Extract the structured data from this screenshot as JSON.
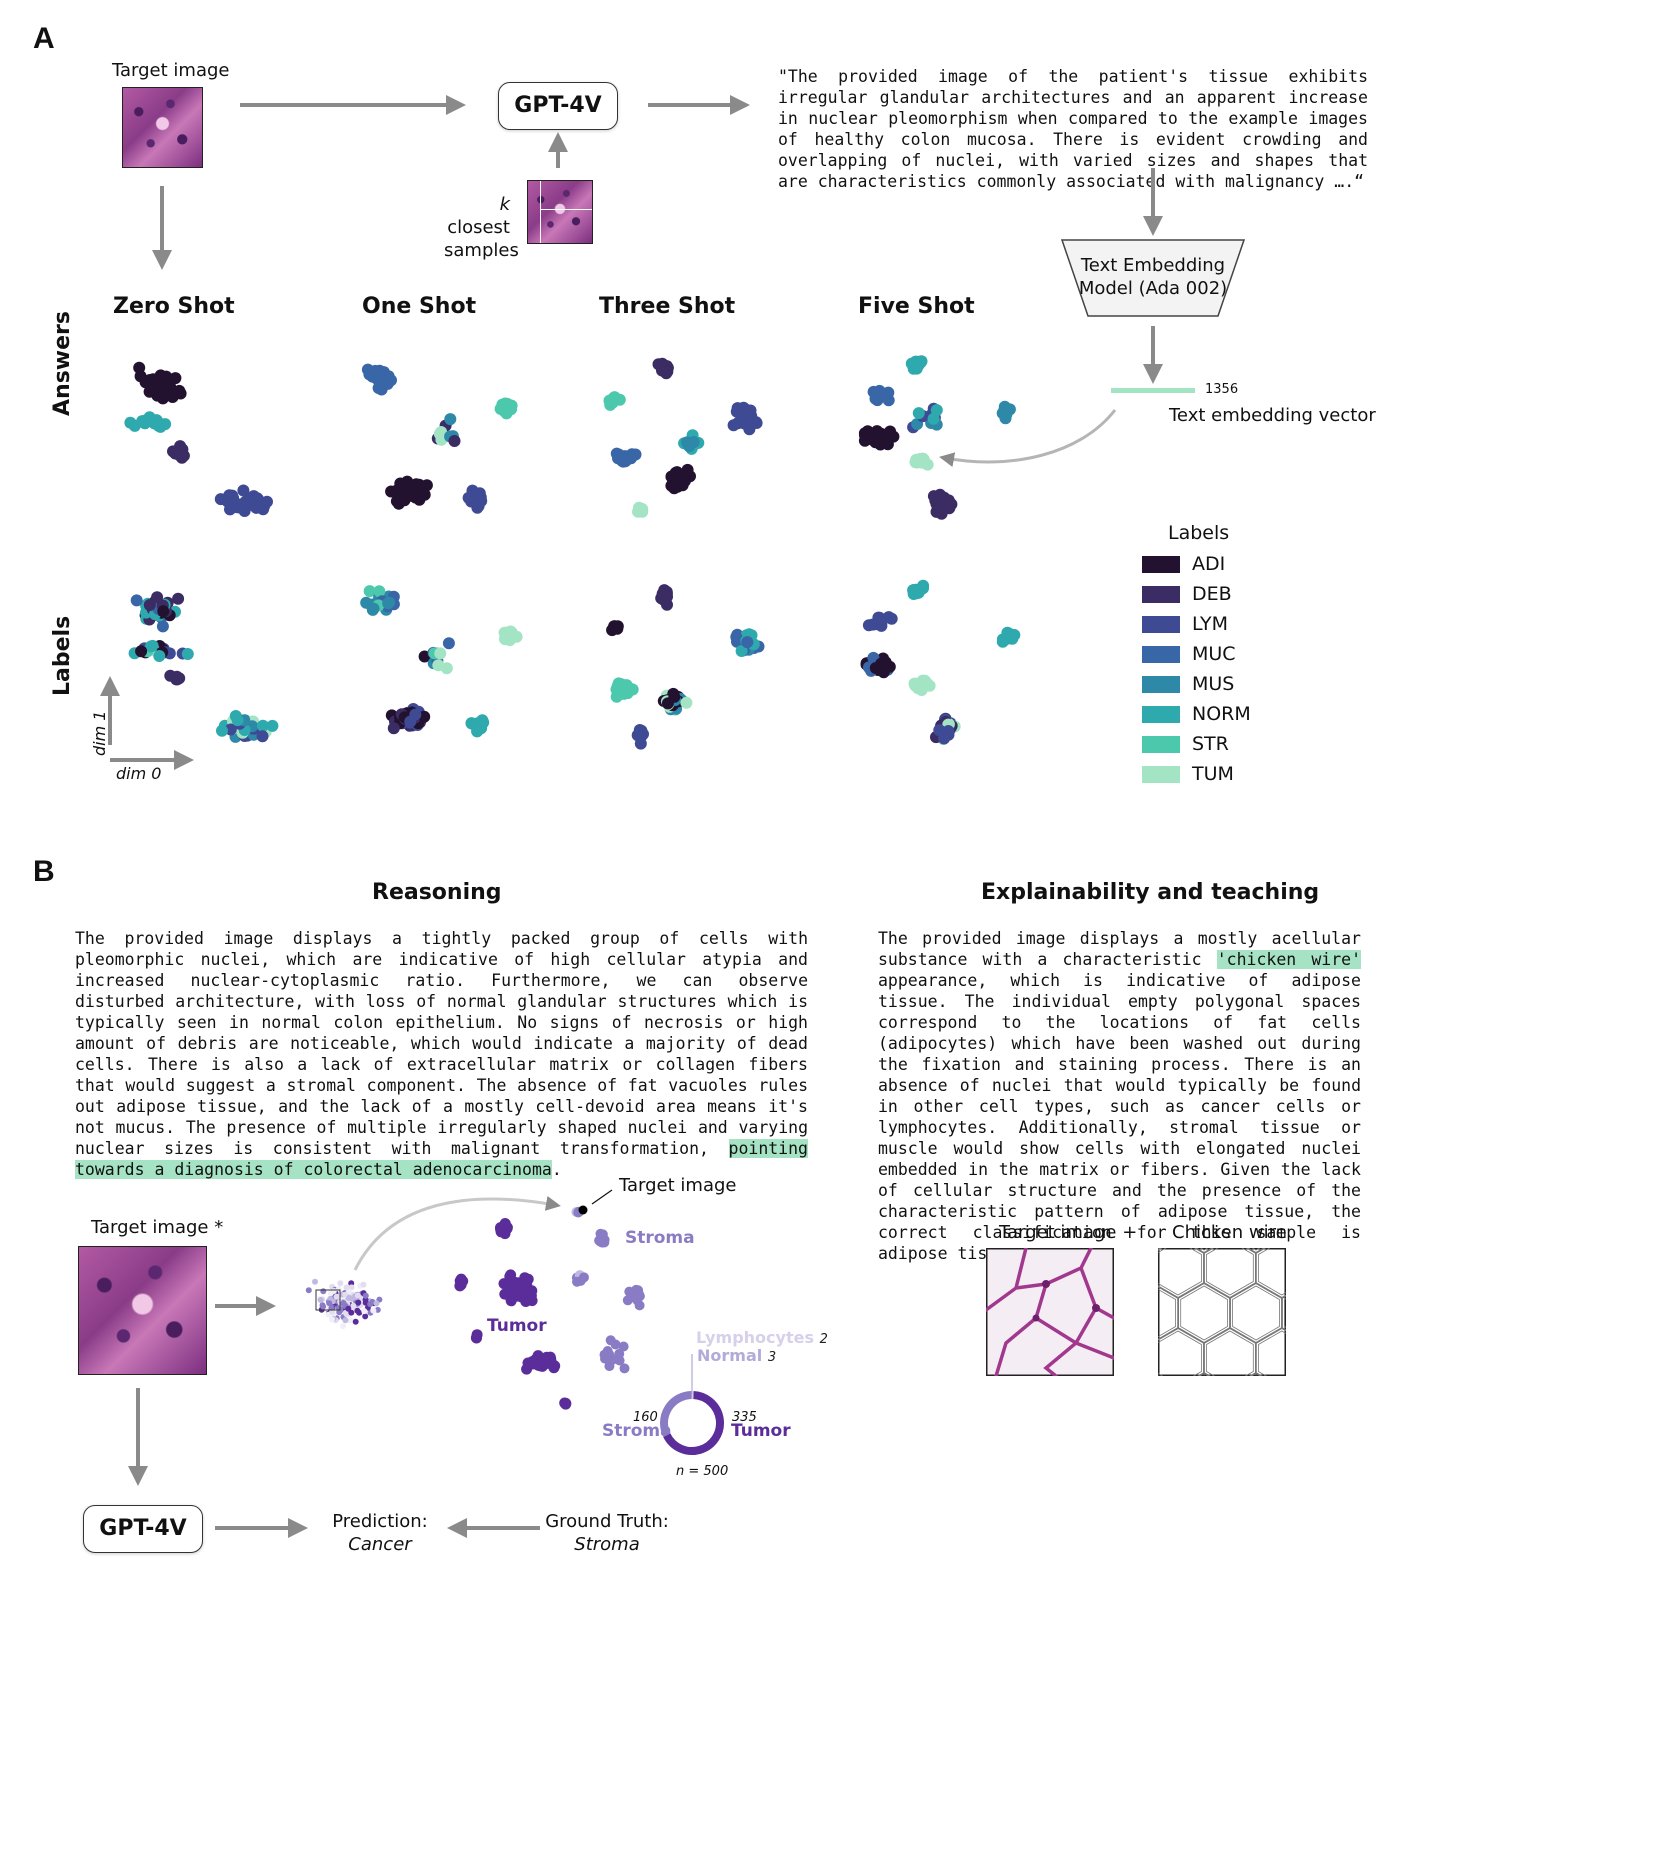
{
  "panel_a": {
    "letter": "A",
    "target_image_label": "Target image",
    "model_label": "GPT-4V",
    "k_closest_k": "k",
    "k_closest_line1": " closest",
    "k_closest_line2": "samples",
    "quote": "\"The provided image of the patient's tissue exhibits irregular glandular architectures and an apparent increase in nuclear pleomorphism when compared to the example images of healthy colon mucosa. There is evident crowding and overlapping of nuclei, with varied sizes and shapes that are characteristics commonly associated with malignancy ….“",
    "embedding_model_line1": "Text Embedding",
    "embedding_model_line2": "Model (Ada 002)",
    "vector_length": "1356",
    "vector_label": "Text embedding vector",
    "shot_titles": [
      "Zero Shot",
      "One Shot",
      "Three Shot",
      "Five Shot"
    ],
    "row_labels": [
      "Answers",
      "Labels"
    ],
    "axis_dim1": "dim 1",
    "axis_dim0": "dim 0",
    "legend_title": "Labels",
    "legend": [
      {
        "label": "ADI",
        "color": "#23122f"
      },
      {
        "label": "DEB",
        "color": "#3b2c63"
      },
      {
        "label": "LYM",
        "color": "#3f4a94"
      },
      {
        "label": "MUC",
        "color": "#3866a6"
      },
      {
        "label": "MUS",
        "color": "#2e88a8"
      },
      {
        "label": "NORM",
        "color": "#2ea9ad"
      },
      {
        "label": "STR",
        "color": "#4cc8ad"
      },
      {
        "label": "TUM",
        "color": "#a3e4c4"
      }
    ]
  },
  "panel_b": {
    "letter": "B",
    "reasoning_title": "Reasoning",
    "reasoning_text": "The provided image displays a tightly packed group of cells with pleomorphic nuclei, which are indicative of high cellular atypia and increased nuclear-cytoplasmic ratio. Furthermore, we can observe disturbed architecture, with loss of normal glandular structures which is typically seen in normal colon epithelium. No signs of necrosis or high amount of debris are noticeable, which would indicate a majority of dead cells. There is also a lack of extracellular matrix or collagen fibers that would suggest a stromal component. The absence of fat vacuoles rules out adipose tissue, and the lack of a mostly cell-devoid area means it's not mucus. The presence of multiple irregularly shaped nuclei and varying nuclear sizes is consistent with malignant transformation, ",
    "reasoning_highlight": "pointing towards a diagnosis of colorectal adenocarcinoma",
    "reasoning_end": ".",
    "explain_title": "Explainability and teaching",
    "explain_text_1": "The provided image displays a mostly acellular substance with a characteristic ",
    "explain_highlight": "'chicken wire'",
    "explain_text_2": " appearance, which is indicative of adipose tissue. The individual empty polygonal spaces correspond to the locations of fat cells (adipocytes) which have been washed out during the fixation and staining process. There is an absence of nuclei that would typically be found in other cell types, such as cancer cells or lymphocytes. Additionally, stromal tissue or muscle would show cells with elongated nuclei embedded in the matrix or fibers. Given the lack of cellular structure and the presence of the characteristic pattern of adipose tissue, the correct classification for this sample is adipose tissue.",
    "target_image_star": "Target image *",
    "target_image_label": "Target image",
    "stroma_label": "Stroma",
    "tumor_label": "Tumor",
    "donut": {
      "lymphocytes_label": "Lymphocytes",
      "lymphocytes_value": "2",
      "normal_label": "Normal",
      "normal_value": "3",
      "stroma_label": "Stroma",
      "stroma_value": "160",
      "tumor_label": "Tumor",
      "tumor_value": "335",
      "n_label": "n = 500",
      "values": [
        335,
        160,
        3,
        2
      ],
      "colors": [
        "#5b2d9a",
        "#8a7cc4",
        "#c0b8e2",
        "#e2dcf1"
      ]
    },
    "model_label": "GPT-4V",
    "prediction_label": "Prediction:",
    "prediction_value": "Cancer",
    "ground_truth_label": "Ground Truth:",
    "ground_truth_value": "Stroma",
    "target_plus": "Target image +",
    "chicken_wire": "Chicken wire"
  }
}
